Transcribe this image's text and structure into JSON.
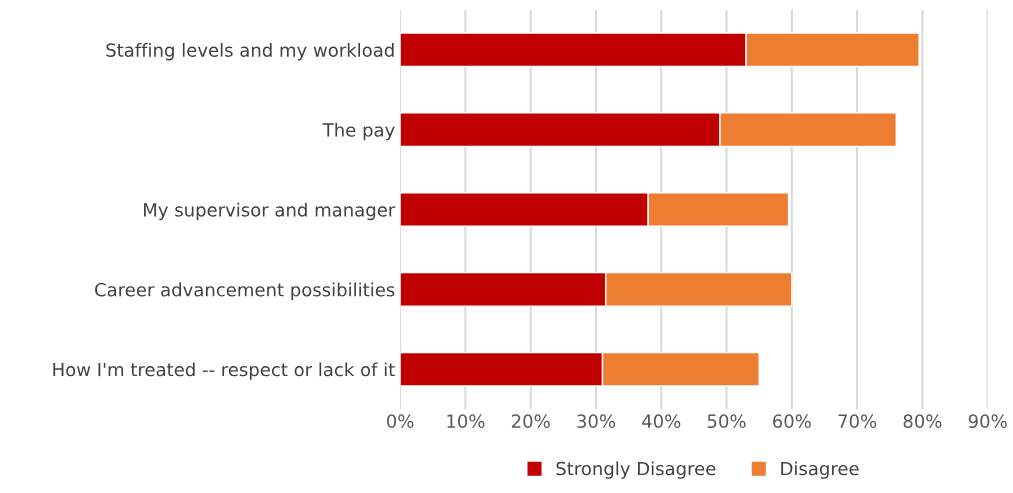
{
  "chart_data": {
    "type": "bar",
    "orientation": "horizontal",
    "stacked": true,
    "categories": [
      "Staffing levels and my workload",
      "The pay",
      "My supervisor and manager",
      "Career advancement possibilities",
      "How I'm treated -- respect or lack of it"
    ],
    "series": [
      {
        "name": "Strongly Disagree",
        "color": "#c00000",
        "values": [
          53,
          49,
          38,
          31.5,
          31
        ]
      },
      {
        "name": "Disagree",
        "color": "#ed7d31",
        "values": [
          26.5,
          27,
          21.5,
          28.5,
          24
        ]
      }
    ],
    "xlim": [
      0,
      90
    ],
    "xticks": [
      {
        "value": 0,
        "label": "0%"
      },
      {
        "value": 10,
        "label": "10%"
      },
      {
        "value": 20,
        "label": "20%"
      },
      {
        "value": 30,
        "label": "30%"
      },
      {
        "value": 40,
        "label": "40%"
      },
      {
        "value": 50,
        "label": "50%"
      },
      {
        "value": 60,
        "label": "60%"
      },
      {
        "value": 70,
        "label": "70%"
      },
      {
        "value": 80,
        "label": "80%"
      },
      {
        "value": 90,
        "label": "90%"
      }
    ],
    "grid": "x",
    "legend": "bottom"
  }
}
